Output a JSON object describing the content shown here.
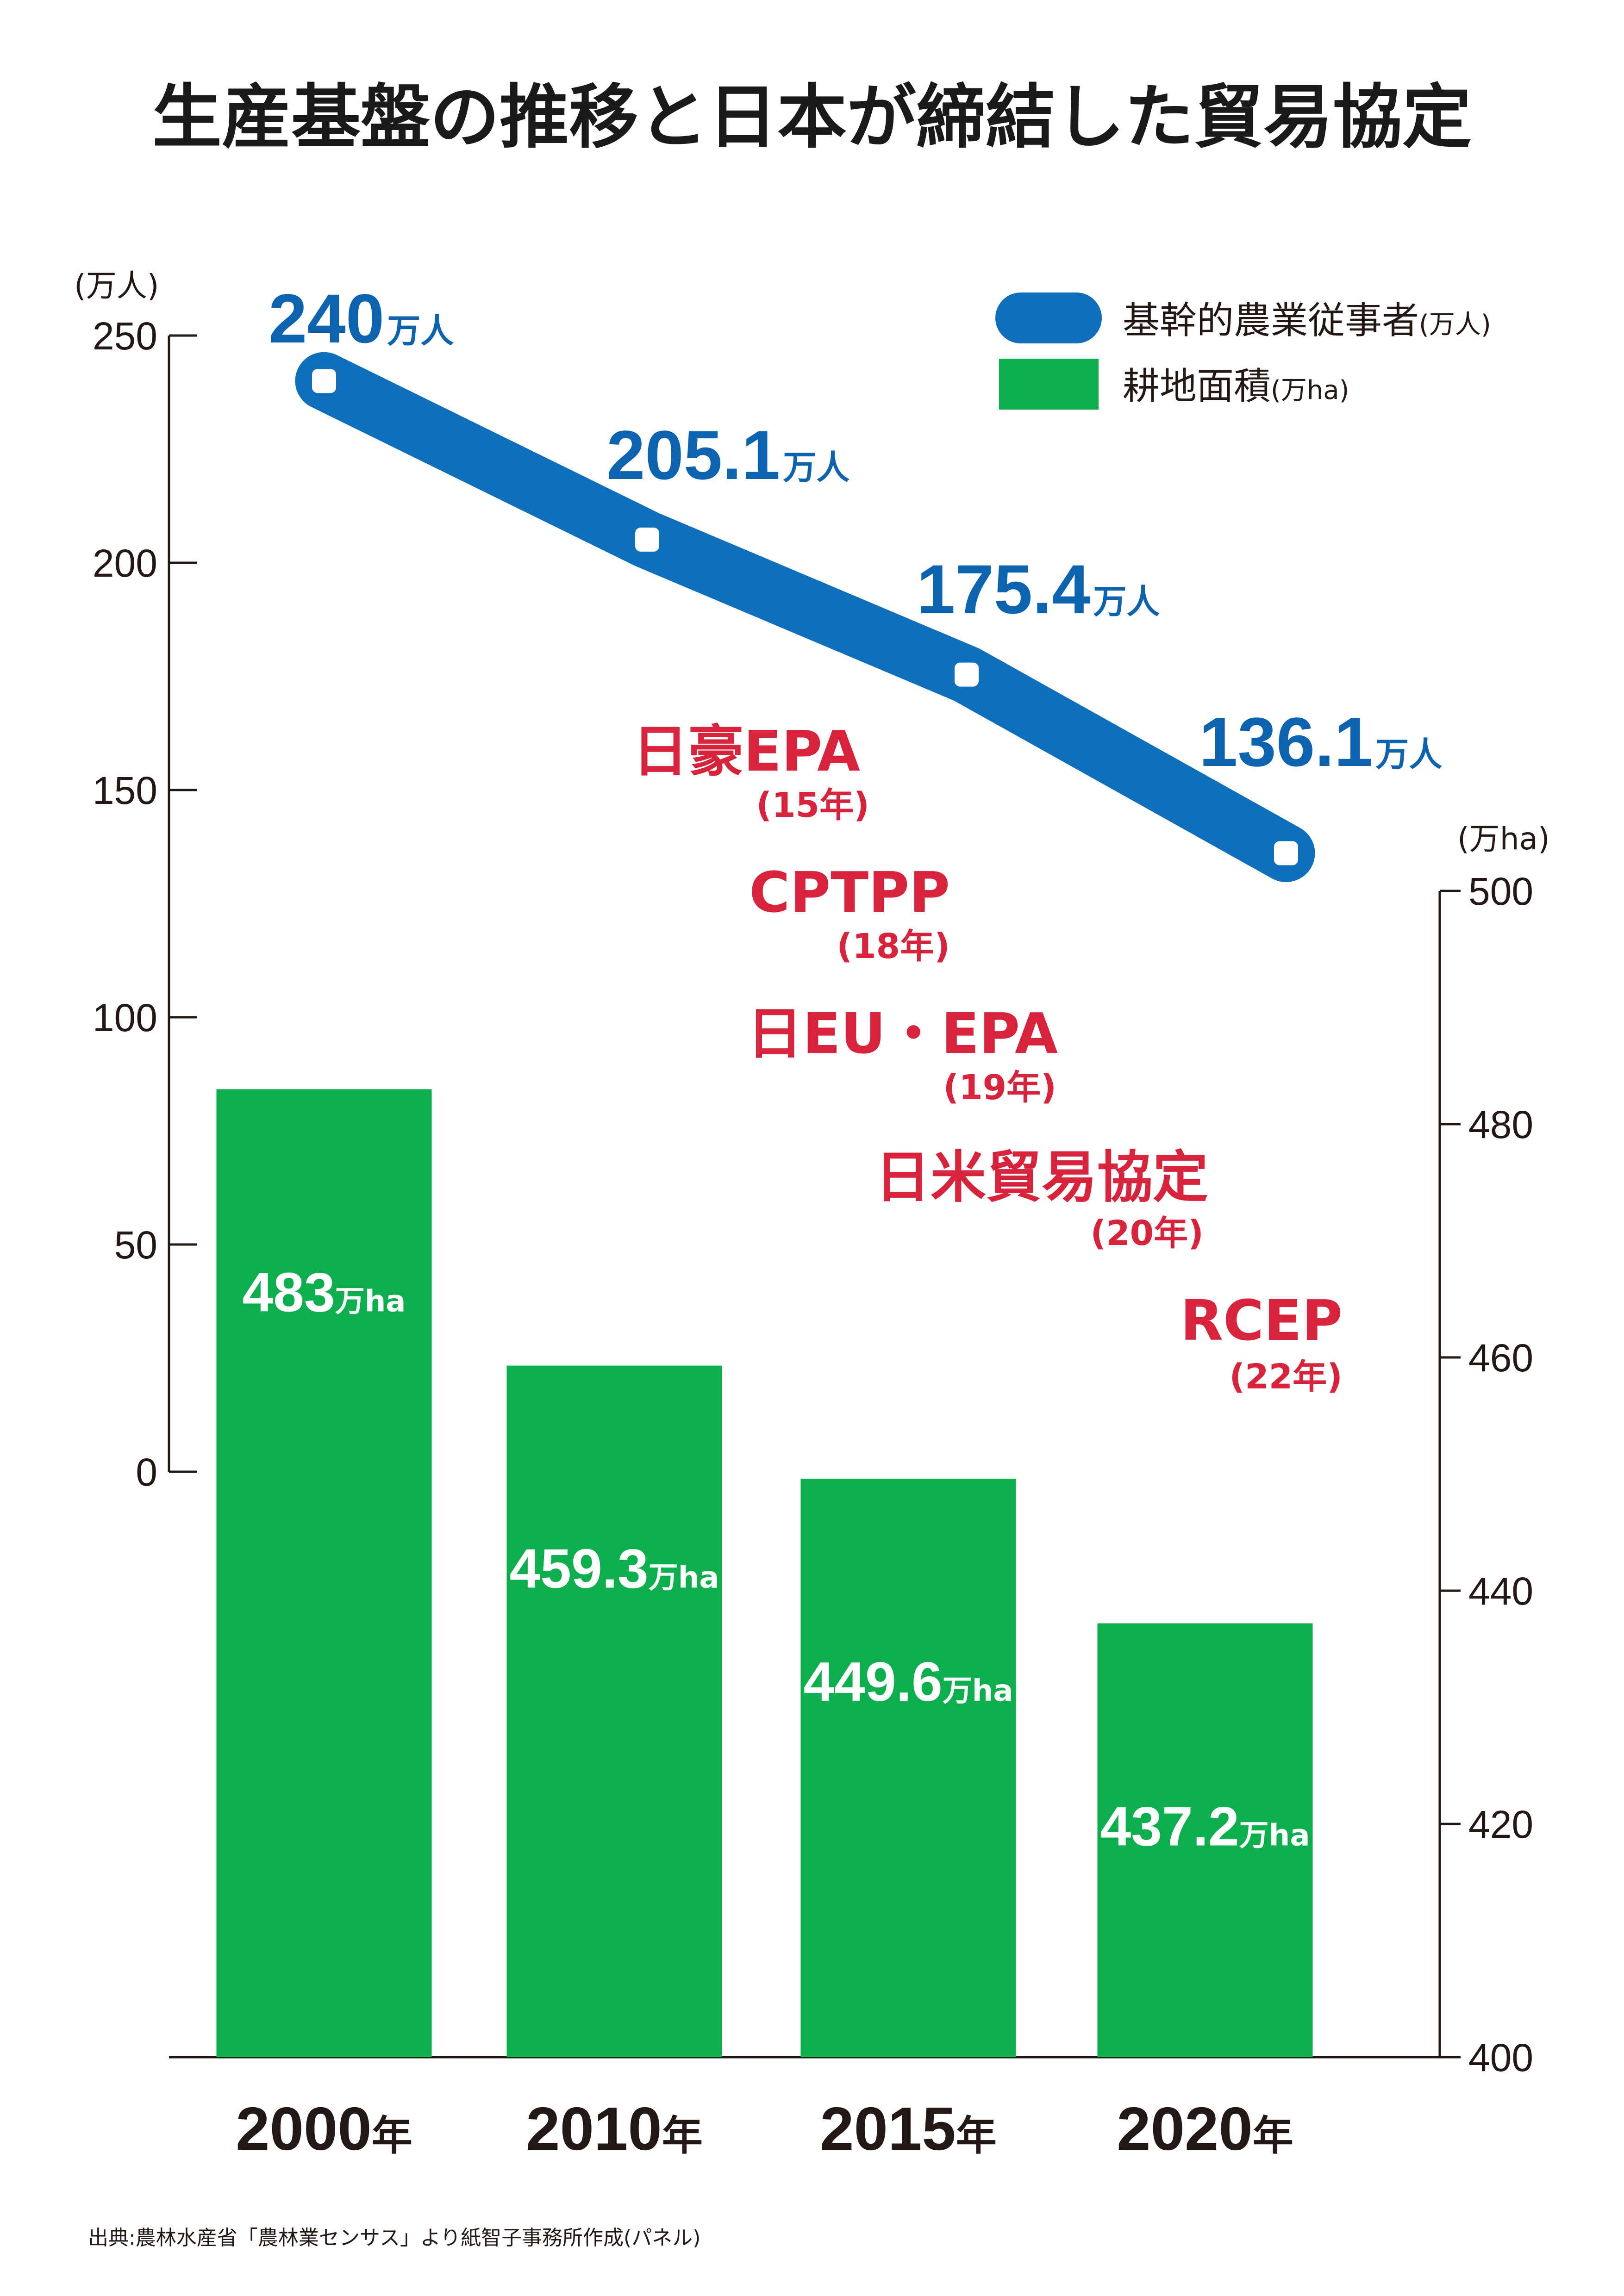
{
  "title": "生産基盤の推移と日本が締結した貿易協定",
  "source": "出典:農林水産省「農林業センサス」より紙智子事務所作成(パネル)",
  "colors": {
    "people": "#0f6fbb",
    "farmland": "#0caf4c",
    "agreement": "#d7233c",
    "text": "#231815"
  },
  "legend": {
    "people": {
      "label": "基幹的農業従事者",
      "unit": "(万人)",
      "icon": "blue-rounded-bar"
    },
    "farmland": {
      "label": "耕地面積",
      "unit": "(万ha)",
      "icon": "green-square"
    }
  },
  "agreements": [
    {
      "name": "日豪EPA",
      "year": "(15年)"
    },
    {
      "name": "CPTPP",
      "year": "(18年)"
    },
    {
      "name": "日EU・EPA",
      "year": "(19年)"
    },
    {
      "name": "日米貿易協定",
      "year": "(20年)"
    },
    {
      "name": "RCEP",
      "year": "(22年)"
    }
  ],
  "chart_data": {
    "type": "bar+line",
    "categories": [
      "2000",
      "2010",
      "2015",
      "2020"
    ],
    "category_suffix": "年",
    "left_axis": {
      "unit": "(万人)",
      "ticks": [
        "250",
        "200",
        "150",
        "100",
        "50",
        "0"
      ],
      "ylim": [
        0,
        250
      ]
    },
    "right_axis": {
      "unit": "(万ha)",
      "ticks": [
        "500",
        "480",
        "460",
        "440",
        "420",
        "400"
      ],
      "ylim": [
        400,
        500
      ]
    },
    "series": [
      {
        "name": "基幹的農業従事者",
        "type": "line",
        "axis": "left",
        "values": [
          240,
          205.1,
          175.4,
          136.1
        ],
        "labels": [
          "240",
          "205.1",
          "175.4",
          "136.1"
        ],
        "label_unit": "万人"
      },
      {
        "name": "耕地面積",
        "type": "bar",
        "axis": "right",
        "values": [
          483,
          459.3,
          449.6,
          437.2
        ],
        "labels": [
          "483",
          "459.3",
          "449.6",
          "437.2"
        ],
        "label_unit": "万ha"
      }
    ],
    "grid": false,
    "legend_position": "top-right"
  }
}
